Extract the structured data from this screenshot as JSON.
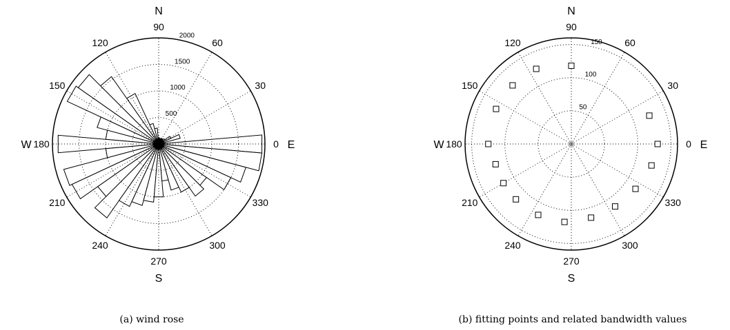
{
  "chart_data": [
    {
      "type": "polar-bar",
      "caption": "(a) wind rose",
      "compass": {
        "north": "N",
        "south": "S",
        "east": "E",
        "west": "W"
      },
      "angle_ticks": [
        "0",
        "30",
        "60",
        "90",
        "120",
        "150",
        "180",
        "210",
        "240",
        "270",
        "300",
        "330"
      ],
      "radial_ticks": [
        "500",
        "1000",
        "1500",
        "2000"
      ],
      "rmax": 2000,
      "bin_width_deg": 10,
      "directions": [
        0,
        10,
        20,
        30,
        40,
        50,
        60,
        70,
        80,
        90,
        100,
        110,
        120,
        130,
        140,
        150,
        160,
        170,
        180,
        190,
        200,
        210,
        220,
        230,
        240,
        250,
        260,
        270,
        280,
        290,
        300,
        310,
        320,
        330,
        340,
        350
      ],
      "values": [
        1950,
        120,
        420,
        250,
        140,
        110,
        120,
        80,
        110,
        120,
        300,
        400,
        1050,
        1550,
        1850,
        1900,
        1200,
        1000,
        1900,
        1000,
        1850,
        1800,
        1400,
        1700,
        1300,
        1200,
        1100,
        1000,
        700,
        900,
        1000,
        1200,
        1100,
        1500,
        1700,
        1950
      ]
    },
    {
      "type": "polar-scatter",
      "caption": "(b) fitting points and related bandwidth values",
      "compass": {
        "north": "N",
        "south": "S",
        "east": "E",
        "west": "W"
      },
      "angle_ticks": [
        "0",
        "30",
        "60",
        "90",
        "120",
        "150",
        "180",
        "210",
        "240",
        "270",
        "300",
        "330"
      ],
      "radial_ticks": [
        "50",
        "100",
        "150"
      ],
      "rmax": 160,
      "marker": "square",
      "points": [
        {
          "angle": 0,
          "r": 130
        },
        {
          "angle": 20,
          "r": 125
        },
        {
          "angle": 90,
          "r": 118
        },
        {
          "angle": 115,
          "r": 125
        },
        {
          "angle": 135,
          "r": 125
        },
        {
          "angle": 155,
          "r": 125
        },
        {
          "angle": 180,
          "r": 125
        },
        {
          "angle": 195,
          "r": 118
        },
        {
          "angle": 210,
          "r": 118
        },
        {
          "angle": 225,
          "r": 118
        },
        {
          "angle": 245,
          "r": 118
        },
        {
          "angle": 265,
          "r": 118
        },
        {
          "angle": 285,
          "r": 115
        },
        {
          "angle": 305,
          "r": 115
        },
        {
          "angle": 325,
          "r": 118
        },
        {
          "angle": 345,
          "r": 125
        }
      ]
    }
  ]
}
